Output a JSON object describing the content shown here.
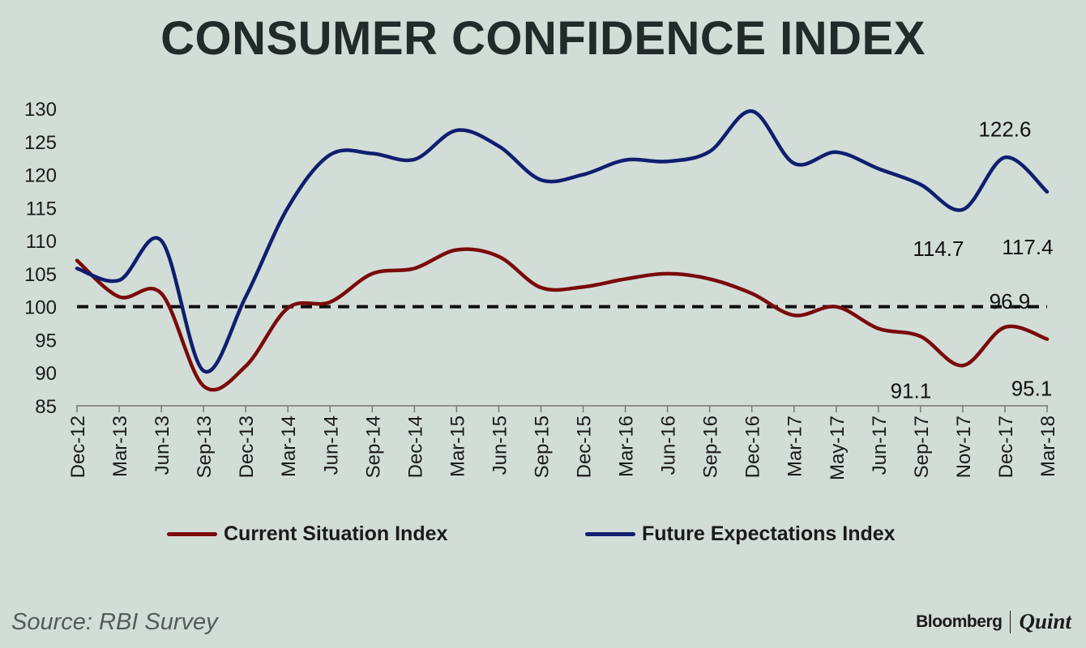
{
  "chart_data": {
    "type": "line",
    "title": "CONSUMER CONFIDENCE INDEX",
    "categories": [
      "Dec-12",
      "Mar-13",
      "Jun-13",
      "Sep-13",
      "Dec-13",
      "Mar-14",
      "Jun-14",
      "Sep-14",
      "Dec-14",
      "Mar-15",
      "Jun-15",
      "Sep-15",
      "Dec-15",
      "Mar-16",
      "Jun-16",
      "Sep-16",
      "Dec-16",
      "Mar-17",
      "May-17",
      "Jun-17",
      "Sep-17",
      "Nov-17",
      "Dec-17",
      "Mar-18"
    ],
    "ylim": [
      85,
      130
    ],
    "yticks": [
      85,
      90,
      95,
      100,
      105,
      110,
      115,
      120,
      125,
      130
    ],
    "reference_line": 100,
    "series": [
      {
        "name": "Current Situation Index",
        "color": "#7a0a0a",
        "values": [
          107,
          101.5,
          102,
          88,
          91,
          99.8,
          100.7,
          105,
          105.8,
          108.6,
          107.6,
          102.9,
          103,
          104.2,
          105,
          104.2,
          102,
          98.7,
          100,
          96.7,
          95.5,
          91.1,
          96.9,
          95.1
        ]
      },
      {
        "name": "Future Expectations Index",
        "color": "#0f1e6e",
        "values": [
          105.8,
          104,
          110,
          90.3,
          101.5,
          115,
          123,
          123.2,
          122.3,
          126.7,
          124.3,
          119.2,
          120,
          122.2,
          122,
          123.5,
          129.6,
          121.7,
          123.4,
          120.9,
          118.5,
          114.7,
          122.6,
          117.4
        ]
      }
    ],
    "annotations": [
      {
        "text": "122.6",
        "series": "Future Expectations Index",
        "category": "Dec-17"
      },
      {
        "text": "114.7",
        "series": "Future Expectations Index",
        "category": "Nov-17"
      },
      {
        "text": "117.4",
        "series": "Future Expectations Index",
        "category": "Mar-18"
      },
      {
        "text": "96.9",
        "series": "Current Situation Index",
        "category": "Dec-17"
      },
      {
        "text": "91.1",
        "series": "Current Situation Index",
        "category": "Nov-17"
      },
      {
        "text": "95.1",
        "series": "Current Situation Index",
        "category": "Mar-18"
      }
    ]
  },
  "legend": {
    "items": [
      {
        "label": "Current Situation Index",
        "color": "#7a0a0a"
      },
      {
        "label": "Future Expectations Index",
        "color": "#0f1e6e"
      }
    ]
  },
  "footer": {
    "source": "Source: RBI Survey",
    "brand_primary": "Bloomberg",
    "brand_secondary": "Quint"
  }
}
